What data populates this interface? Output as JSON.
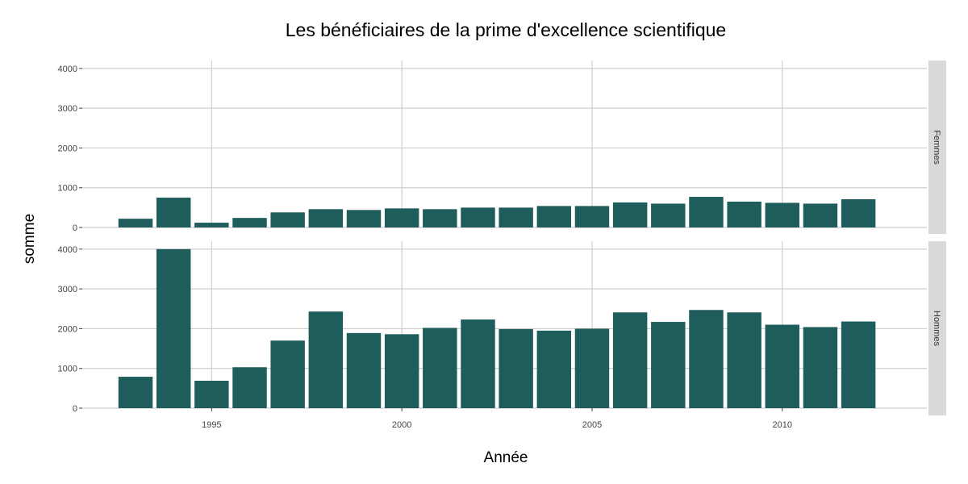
{
  "chart_data": {
    "type": "bar",
    "title": "Les bénéficiaires de la prime d'excellence scientifique",
    "xlabel": "Année",
    "ylabel": "somme",
    "x": [
      1993,
      1994,
      1995,
      1996,
      1997,
      1998,
      1999,
      2000,
      2001,
      2002,
      2003,
      2004,
      2005,
      2006,
      2007,
      2008,
      2009,
      2010,
      2011,
      2012
    ],
    "xticks": [
      1995,
      2000,
      2005,
      2010
    ],
    "xlim": [
      1991.6,
      2013.8
    ],
    "ylim": [
      0,
      4200
    ],
    "yticks": [
      0,
      1000,
      2000,
      3000,
      4000
    ],
    "bar_color": "#1f5c5c",
    "grid": true,
    "facets": [
      {
        "label": "Femmes",
        "values": [
          220,
          750,
          120,
          240,
          380,
          460,
          440,
          480,
          460,
          500,
          500,
          540,
          540,
          630,
          600,
          770,
          650,
          620,
          600,
          710
        ]
      },
      {
        "label": "Hommes",
        "values": [
          790,
          4000,
          690,
          1030,
          1700,
          2430,
          1890,
          1860,
          2020,
          2230,
          1990,
          1950,
          2000,
          2410,
          2170,
          2470,
          2410,
          2100,
          2040,
          2180
        ]
      }
    ]
  }
}
